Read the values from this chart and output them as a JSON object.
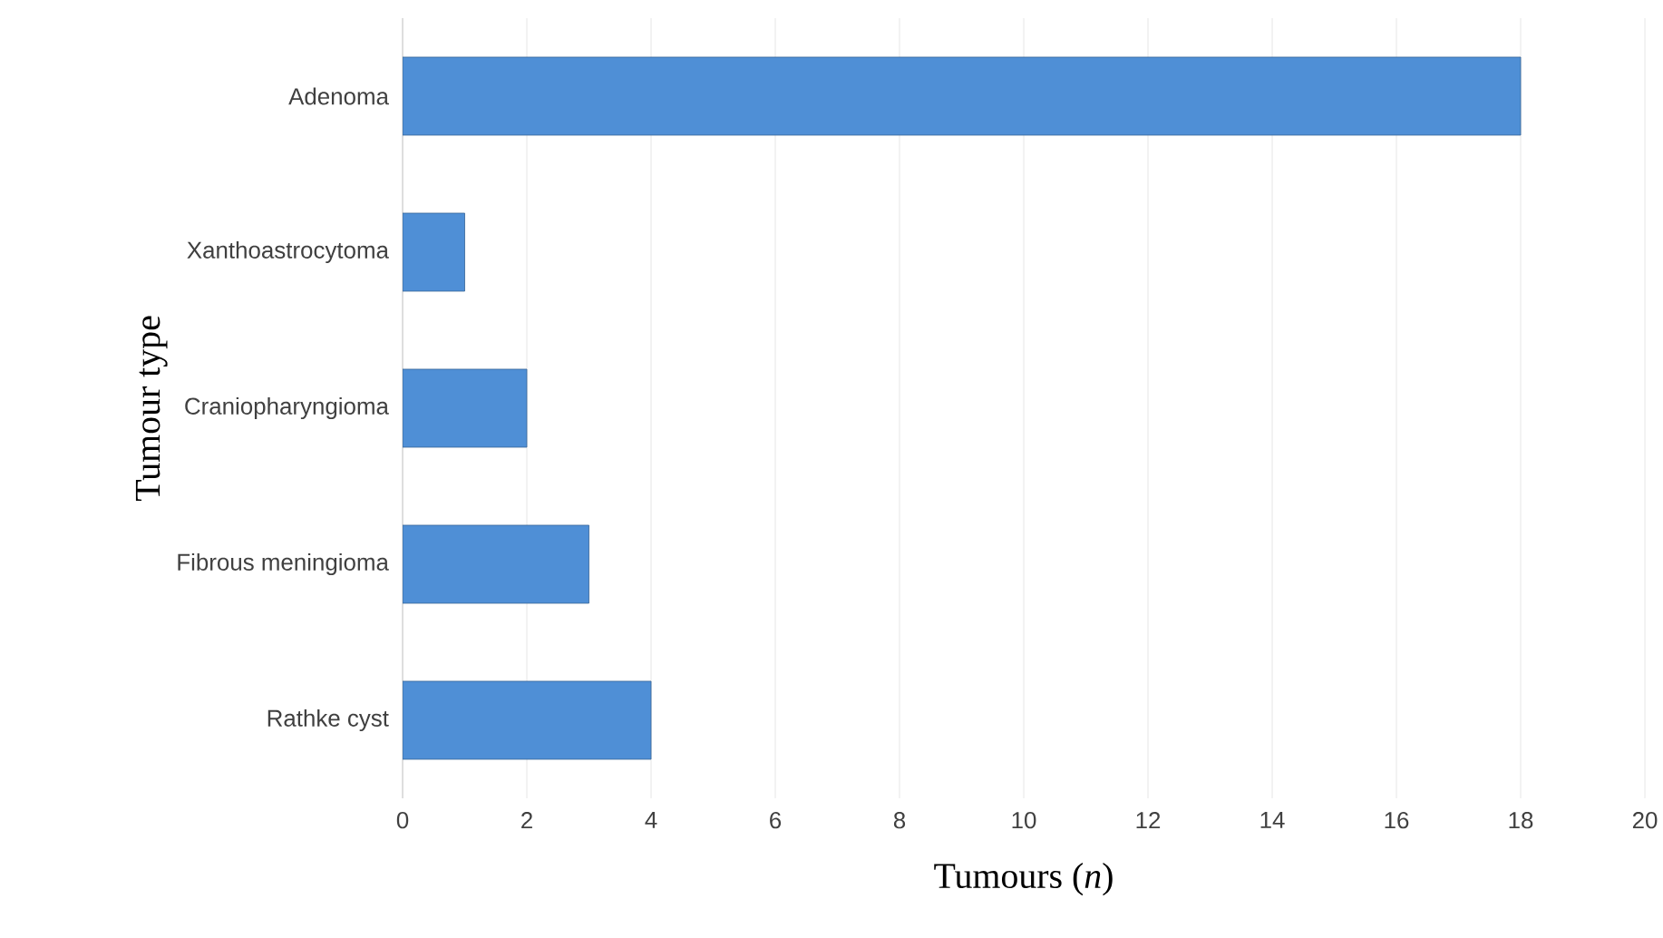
{
  "chart_data": {
    "type": "bar",
    "orientation": "horizontal",
    "xlabel": "Tumours (*n*)",
    "ylabel": "Tumour type",
    "categories": [
      "Adenoma",
      "Xanthoastrocytoma",
      "Craniopharyngioma",
      "Fibrous meningioma",
      "Rathke cyst"
    ],
    "values": [
      18,
      1,
      2,
      3,
      4
    ],
    "color": "#4f8fd6",
    "xlim": [
      0,
      20
    ],
    "xticks": [
      0,
      2,
      4,
      6,
      8,
      10,
      12,
      14,
      16,
      18,
      20
    ],
    "grid": "x"
  }
}
